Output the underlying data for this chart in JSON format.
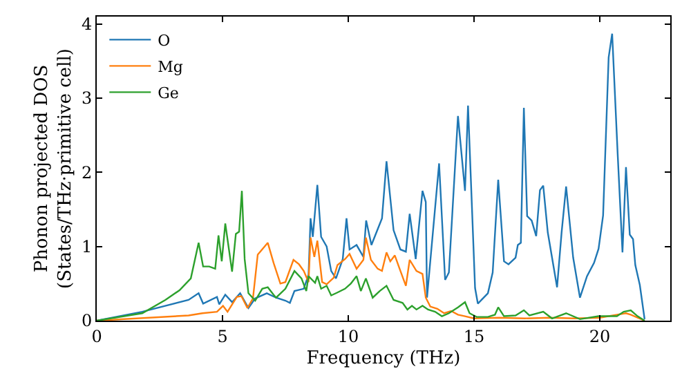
{
  "chart_data": {
    "type": "line",
    "xlabel": "Frequency (THz)",
    "ylabel": "Phonon projected DOS\n(States/THz·primitive cell)",
    "xlim": [
      0,
      22.8
    ],
    "ylim": [
      0,
      4.1
    ],
    "xticks": [
      0,
      5,
      10,
      15,
      20
    ],
    "yticks": [
      0,
      1,
      2,
      3,
      4
    ],
    "legend": "top left",
    "marker": "none",
    "line_style": "solid",
    "series": [
      {
        "name": "O",
        "color": "#1f77b4",
        "x": [
          0,
          1.81,
          3.65,
          4.05,
          4.23,
          4.78,
          4.87,
          5.11,
          5.38,
          5.7,
          6.03,
          6.3,
          6.76,
          7.13,
          7.5,
          7.68,
          7.86,
          8.23,
          8.42,
          8.5,
          8.59,
          8.77,
          8.92,
          9.14,
          9.32,
          9.51,
          9.78,
          9.93,
          10.05,
          10.33,
          10.6,
          10.71,
          10.92,
          11.34,
          11.52,
          11.8,
          12.07,
          12.29,
          12.44,
          12.68,
          12.95,
          13.08,
          13.13,
          13.61,
          13.85,
          14.0,
          14.36,
          14.64,
          14.76,
          15.04,
          15.15,
          15.55,
          15.74,
          15.96,
          16.19,
          16.37,
          16.65,
          16.74,
          16.86,
          16.98,
          17.11,
          17.29,
          17.47,
          17.62,
          17.75,
          17.93,
          18.3,
          18.48,
          18.66,
          18.94,
          19.21,
          19.49,
          19.77,
          19.95,
          20.13,
          20.35,
          20.49,
          20.71,
          20.9,
          21.04,
          21.19,
          21.32,
          21.41,
          21.59,
          21.78
        ],
        "values": [
          0,
          0.12,
          0.28,
          0.37,
          0.23,
          0.32,
          0.22,
          0.35,
          0.25,
          0.37,
          0.17,
          0.3,
          0.37,
          0.31,
          0.27,
          0.24,
          0.4,
          0.43,
          0.62,
          1.38,
          1.13,
          1.83,
          1.13,
          1.0,
          0.67,
          0.57,
          0.83,
          1.38,
          0.96,
          1.02,
          0.86,
          1.35,
          1.02,
          1.38,
          2.15,
          1.22,
          0.96,
          0.93,
          1.44,
          0.83,
          1.75,
          1.6,
          0.31,
          2.12,
          0.55,
          0.65,
          2.76,
          1.75,
          2.9,
          0.44,
          0.23,
          0.37,
          0.65,
          1.9,
          0.8,
          0.76,
          0.85,
          1.02,
          1.05,
          2.87,
          1.41,
          1.35,
          1.14,
          1.76,
          1.82,
          1.19,
          0.45,
          1.19,
          1.81,
          0.85,
          0.31,
          0.6,
          0.78,
          0.97,
          1.42,
          3.55,
          3.87,
          2.24,
          0.92,
          2.07,
          1.16,
          1.1,
          0.75,
          0.48,
          0.02
        ]
      },
      {
        "name": "Mg",
        "color": "#ff7f0e",
        "x": [
          0,
          3.65,
          4.2,
          4.78,
          5.02,
          5.2,
          5.57,
          5.75,
          5.99,
          6.21,
          6.4,
          6.8,
          7.03,
          7.3,
          7.5,
          7.82,
          8.04,
          8.23,
          8.42,
          8.5,
          8.65,
          8.77,
          8.96,
          9.14,
          9.42,
          9.57,
          9.87,
          10.05,
          10.33,
          10.6,
          10.7,
          10.9,
          11.17,
          11.34,
          11.52,
          11.67,
          11.85,
          12.04,
          12.29,
          12.44,
          12.71,
          12.95,
          13.08,
          13.26,
          13.54,
          13.81,
          14.09,
          14.36,
          14.64,
          15.0,
          16.0,
          17.0,
          18.0,
          19.0,
          20.0,
          20.68,
          21.04,
          21.23,
          21.78
        ],
        "values": [
          0,
          0.07,
          0.1,
          0.12,
          0.2,
          0.12,
          0.32,
          0.33,
          0.17,
          0.3,
          0.89,
          1.05,
          0.78,
          0.5,
          0.52,
          0.82,
          0.76,
          0.67,
          0.52,
          1.12,
          0.86,
          1.08,
          0.52,
          0.49,
          0.58,
          0.75,
          0.83,
          0.9,
          0.7,
          0.82,
          1.12,
          0.82,
          0.7,
          0.67,
          0.92,
          0.8,
          0.88,
          0.7,
          0.47,
          0.82,
          0.67,
          0.63,
          0.31,
          0.19,
          0.16,
          0.1,
          0.13,
          0.08,
          0.06,
          0.03,
          0.04,
          0.03,
          0.04,
          0.03,
          0.04,
          0.08,
          0.1,
          0.08,
          0
        ]
      },
      {
        "name": "Ge",
        "color": "#2ca02c",
        "x": [
          0,
          1.81,
          2.73,
          3.29,
          3.74,
          4.05,
          4.23,
          4.47,
          4.71,
          4.84,
          4.97,
          5.11,
          5.26,
          5.38,
          5.53,
          5.66,
          5.77,
          5.88,
          6.03,
          6.3,
          6.58,
          6.8,
          7.03,
          7.13,
          7.5,
          7.86,
          8.14,
          8.33,
          8.42,
          8.68,
          8.77,
          8.92,
          9.14,
          9.32,
          9.57,
          9.87,
          10.1,
          10.33,
          10.5,
          10.7,
          10.97,
          11.25,
          11.52,
          11.8,
          12.16,
          12.35,
          12.53,
          12.71,
          12.95,
          13.17,
          13.45,
          13.72,
          14.0,
          14.36,
          14.64,
          14.82,
          15.1,
          15.55,
          15.83,
          15.96,
          16.19,
          16.65,
          16.98,
          17.2,
          17.75,
          18.1,
          18.66,
          19.21,
          19.95,
          20.68,
          20.95,
          21.23,
          21.5,
          21.78
        ],
        "values": [
          0,
          0.1,
          0.28,
          0.41,
          0.57,
          1.05,
          0.73,
          0.73,
          0.7,
          1.15,
          0.8,
          1.31,
          0.95,
          0.66,
          1.17,
          1.2,
          1.75,
          0.83,
          0.37,
          0.27,
          0.43,
          0.45,
          0.35,
          0.31,
          0.43,
          0.67,
          0.57,
          0.4,
          0.6,
          0.51,
          0.6,
          0.43,
          0.47,
          0.34,
          0.38,
          0.43,
          0.5,
          0.6,
          0.4,
          0.57,
          0.31,
          0.4,
          0.47,
          0.28,
          0.24,
          0.15,
          0.2,
          0.15,
          0.2,
          0.15,
          0.12,
          0.06,
          0.1,
          0.18,
          0.25,
          0.1,
          0.05,
          0.05,
          0.08,
          0.18,
          0.06,
          0.07,
          0.14,
          0.07,
          0.12,
          0.03,
          0.1,
          0.02,
          0.06,
          0.06,
          0.12,
          0.14,
          0.06,
          0
        ]
      }
    ]
  }
}
